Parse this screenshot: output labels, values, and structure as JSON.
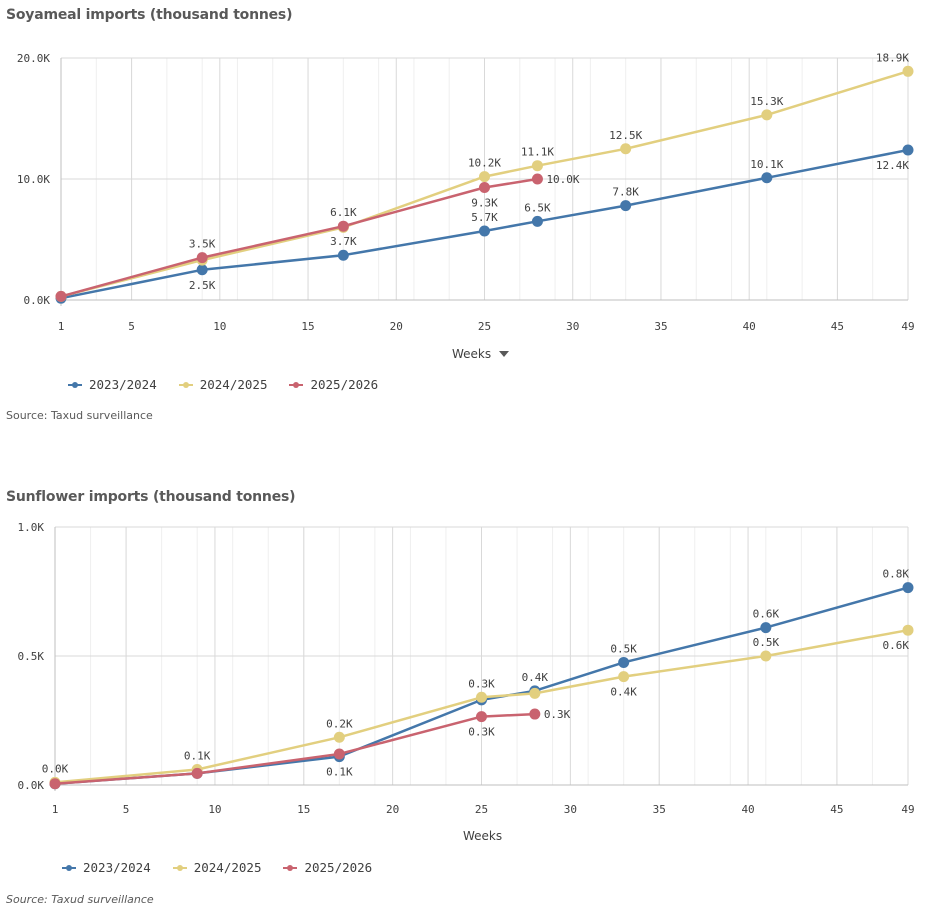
{
  "chart_data": [
    {
      "type": "line",
      "title": "Soyameal imports (thousand tonnes)",
      "xlabel": "Weeks",
      "ylabel": "",
      "xlim": [
        1,
        49
      ],
      "ylim": [
        0,
        20000
      ],
      "x_ticks": [
        1,
        5,
        10,
        15,
        20,
        25,
        30,
        35,
        40,
        45,
        49
      ],
      "x_minor_grid": true,
      "y_ticks": [
        0,
        10000,
        20000
      ],
      "y_tick_labels": [
        "0.0K",
        "10.0K",
        "20.0K"
      ],
      "series": [
        {
          "name": "2023/2024",
          "color": "#4477aa",
          "x": [
            1,
            9,
            17,
            25,
            28,
            33,
            41,
            49
          ],
          "y": [
            150,
            2500,
            3700,
            5700,
            6500,
            7800,
            10100,
            12400
          ],
          "labels": [
            "",
            "2.5K",
            "3.7K",
            "5.7K",
            "6.5K",
            "7.8K",
            "10.1K",
            "12.4K"
          ],
          "label_pos": [
            "",
            "below",
            "above",
            "above",
            "above",
            "above",
            "above",
            "below"
          ]
        },
        {
          "name": "2024/2025",
          "color": "#e2cf7f",
          "x": [
            1,
            9,
            17,
            25,
            28,
            33,
            41,
            49
          ],
          "y": [
            300,
            3300,
            6000,
            10200,
            11100,
            12500,
            15300,
            18900
          ],
          "labels": [
            "",
            "",
            "",
            "10.2K",
            "11.1K",
            "12.5K",
            "15.3K",
            "18.9K"
          ],
          "label_pos": [
            "",
            "",
            "",
            "above",
            "above",
            "above",
            "above",
            "above"
          ]
        },
        {
          "name": "2025/2026",
          "color": "#c9636f",
          "x": [
            1,
            9,
            17,
            25,
            28
          ],
          "y": [
            300,
            3500,
            6100,
            9300,
            10000
          ],
          "labels": [
            "",
            "3.5K",
            "6.1K",
            "9.3K",
            "10.0K"
          ],
          "label_pos": [
            "",
            "above",
            "above",
            "below",
            "right"
          ]
        }
      ],
      "xlabel_sort_indicator": true,
      "source": "Source: Taxud surveillance"
    },
    {
      "type": "line",
      "title": "Sunflower imports (thousand tonnes)",
      "xlabel": "Weeks",
      "ylabel": "",
      "xlim": [
        1,
        49
      ],
      "ylim": [
        0,
        1000
      ],
      "x_ticks": [
        1,
        5,
        10,
        15,
        20,
        25,
        30,
        35,
        40,
        45,
        49
      ],
      "x_minor_grid": true,
      "y_ticks": [
        0,
        500,
        1000
      ],
      "y_tick_labels": [
        "0.0K",
        "0.5K",
        "1.0K"
      ],
      "series": [
        {
          "name": "2023/2024",
          "color": "#4477aa",
          "x": [
            1,
            9,
            17,
            25,
            28,
            33,
            41,
            49
          ],
          "y": [
            5,
            45,
            110,
            330,
            365,
            475,
            610,
            765
          ],
          "labels": [
            "",
            "",
            "0.1K",
            "",
            "0.4K",
            "0.5K",
            "0.6K",
            "0.8K"
          ],
          "label_pos": [
            "",
            "",
            "below",
            "",
            "above",
            "above",
            "above",
            "above"
          ]
        },
        {
          "name": "2024/2025",
          "color": "#e2cf7f",
          "x": [
            1,
            9,
            17,
            25,
            28,
            33,
            41,
            49
          ],
          "y": [
            10,
            60,
            185,
            340,
            355,
            420,
            500,
            600
          ],
          "labels": [
            "0.0K",
            "0.1K",
            "0.2K",
            "0.3K",
            "",
            "0.4K",
            "0.5K",
            "0.6K"
          ],
          "label_pos": [
            "above",
            "above",
            "above",
            "above",
            "",
            "below",
            "above",
            "below"
          ]
        },
        {
          "name": "2025/2026",
          "color": "#c9636f",
          "x": [
            1,
            9,
            17,
            25,
            28
          ],
          "y": [
            5,
            45,
            120,
            265,
            275
          ],
          "labels": [
            "",
            "",
            "",
            "0.3K",
            "0.3K"
          ],
          "label_pos": [
            "",
            "",
            "",
            "below",
            "right"
          ]
        }
      ],
      "xlabel_sort_indicator": false,
      "source": "Source: Taxud surveillance"
    }
  ]
}
